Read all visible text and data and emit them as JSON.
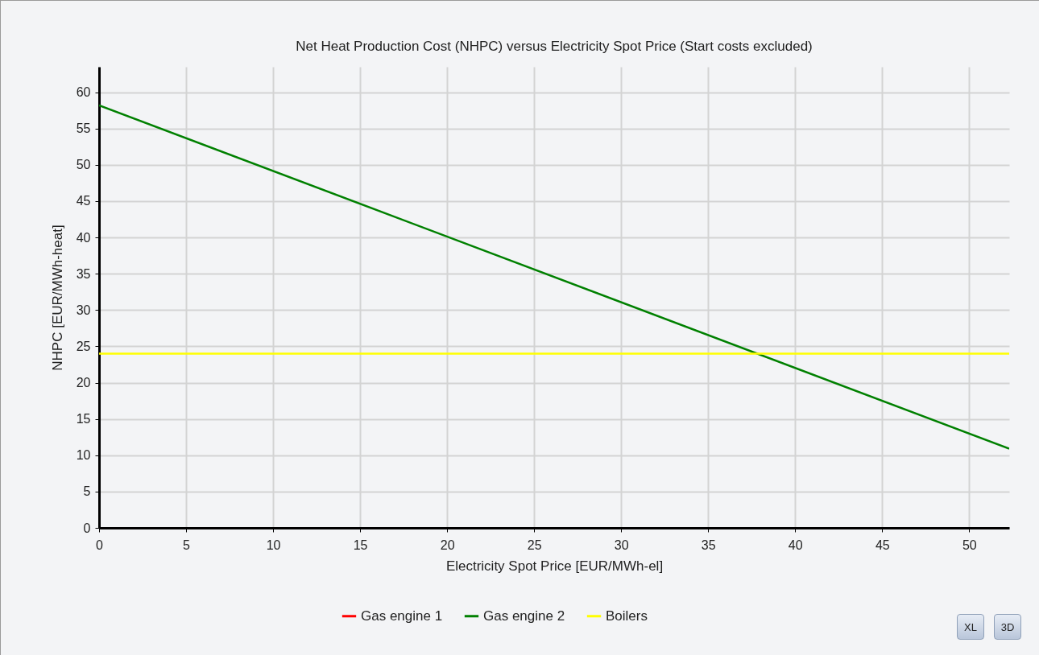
{
  "chart_data": {
    "type": "line",
    "title": "Net Heat Production Cost (NHPC) versus Electricity Spot Price (Start costs excluded)",
    "xlabel": "Electricity Spot Price [EUR/MWh-el]",
    "ylabel": "NHPC [EUR/MWh-heat]",
    "x": [
      0,
      52.3
    ],
    "series": [
      {
        "name": "Gas engine 1",
        "color": "#ff0000",
        "values": [
          null,
          null
        ]
      },
      {
        "name": "Gas engine 2",
        "color": "#008000",
        "values": [
          58.2,
          10.9
        ]
      },
      {
        "name": "Boilers",
        "color": "#ffff00",
        "values": [
          24,
          24
        ]
      }
    ],
    "xlim": [
      0,
      52.3
    ],
    "xticks": [
      0,
      5,
      10,
      15,
      20,
      25,
      30,
      35,
      40,
      45,
      50
    ],
    "ylim": [
      0,
      63.5
    ],
    "yticks": [
      0,
      5,
      10,
      15,
      20,
      25,
      30,
      35,
      40,
      45,
      50,
      55,
      60
    ],
    "grid": true,
    "legend": "bottom",
    "annotations": [
      "XL",
      "3D"
    ]
  }
}
